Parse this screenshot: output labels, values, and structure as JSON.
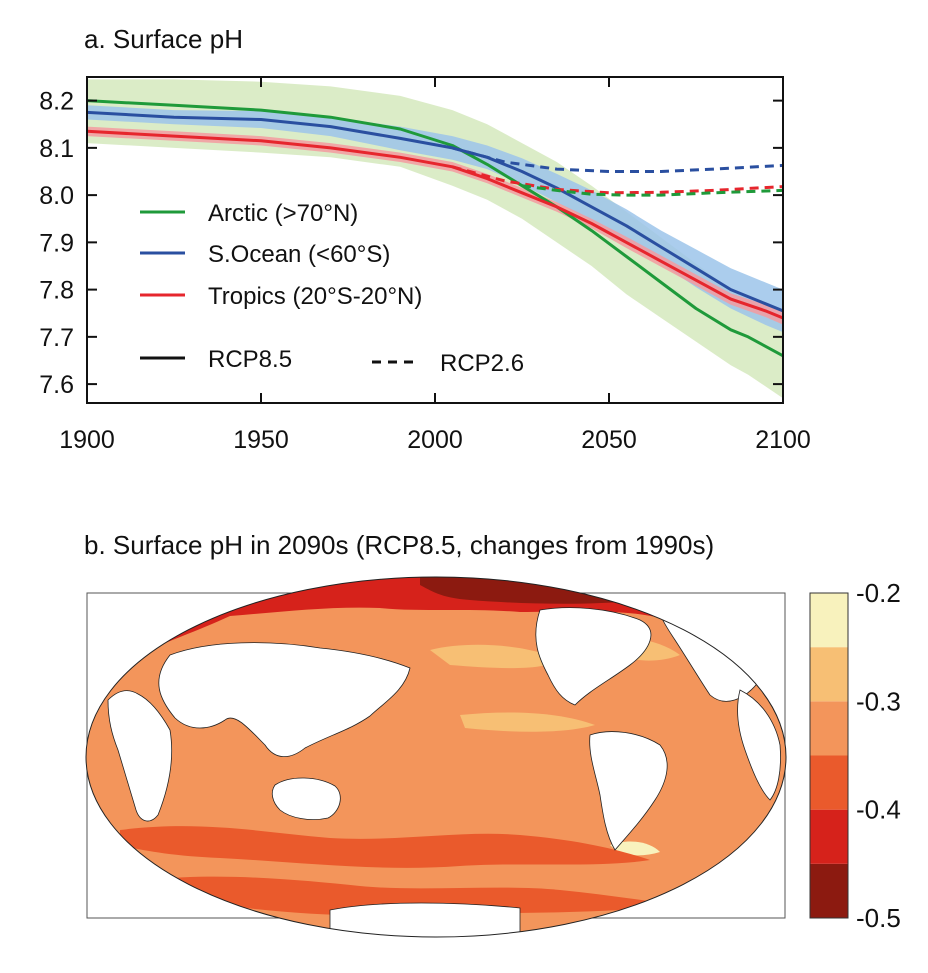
{
  "panel_a_title": "a. Surface pH",
  "panel_b_title": "b. Surface pH in 2090s (RCP8.5, changes from 1990s)",
  "colors": {
    "arctic": "#1f9a3a",
    "arctic_band": "#cfe6b4",
    "s_ocean": "#2a4fa0",
    "s_ocean_band": "#9cc4ea",
    "tropics": "#e6262d",
    "tropics_band": "#f39ba0"
  },
  "legend": {
    "arctic": "Arctic (>70°N)",
    "s_ocean": "S.Ocean (<60°S)",
    "tropics": "Tropics (20°S-20°N)",
    "rcp85": "RCP8.5",
    "rcp26": "RCP2.6"
  },
  "chart_data": [
    {
      "type": "line",
      "title": "a. Surface pH",
      "xlim": [
        1900,
        2100
      ],
      "ylim": [
        7.56,
        8.25
      ],
      "xticks": [
        1900,
        1950,
        2000,
        2050,
        2100
      ],
      "yticks": [
        7.6,
        7.7,
        7.8,
        7.9,
        8.0,
        8.1,
        8.2
      ],
      "xtick_labels": [
        "1900",
        "1950",
        "2000",
        "2050",
        "2100"
      ],
      "ytick_labels": [
        "7.6",
        "7.7",
        "7.8",
        "7.9",
        "8.0",
        "8.1",
        "8.2"
      ],
      "legend_position": "left",
      "series": [
        {
          "name": "Arctic (>70°N)",
          "scenario": "RCP8.5",
          "color": "#1f9a3a",
          "x": [
            1900,
            1925,
            1950,
            1970,
            1990,
            2005,
            2015,
            2025,
            2035,
            2045,
            2055,
            2065,
            2075,
            2085,
            2090,
            2100
          ],
          "y": [
            8.2,
            8.19,
            8.18,
            8.165,
            8.14,
            8.105,
            8.065,
            8.02,
            7.975,
            7.925,
            7.87,
            7.815,
            7.76,
            7.715,
            7.7,
            7.66
          ],
          "band_upper": [
            8.245,
            8.245,
            8.24,
            8.23,
            8.21,
            8.18,
            8.15,
            8.11,
            8.07,
            8.02,
            7.965,
            7.91,
            7.855,
            7.8,
            7.78,
            7.74
          ],
          "band_lower": [
            8.11,
            8.1,
            8.09,
            8.08,
            8.06,
            8.02,
            7.99,
            7.95,
            7.9,
            7.85,
            7.79,
            7.74,
            7.69,
            7.64,
            7.62,
            7.57
          ]
        },
        {
          "name": "S.Ocean (<60°S)",
          "scenario": "RCP8.5",
          "color": "#2a4fa0",
          "x": [
            1900,
            1925,
            1950,
            1970,
            1990,
            2005,
            2015,
            2025,
            2035,
            2045,
            2055,
            2065,
            2075,
            2085,
            2095,
            2100
          ],
          "y": [
            8.175,
            8.165,
            8.16,
            8.145,
            8.12,
            8.1,
            8.08,
            8.05,
            8.015,
            7.975,
            7.935,
            7.89,
            7.845,
            7.8,
            7.77,
            7.755
          ],
          "band_upper": [
            8.19,
            8.18,
            8.178,
            8.165,
            8.145,
            8.125,
            8.105,
            8.078,
            8.045,
            8.01,
            7.97,
            7.925,
            7.885,
            7.845,
            7.815,
            7.8
          ],
          "band_lower": [
            8.16,
            8.15,
            8.142,
            8.125,
            8.095,
            8.075,
            8.055,
            8.022,
            7.985,
            7.945,
            7.9,
            7.855,
            7.805,
            7.76,
            7.725,
            7.71
          ]
        },
        {
          "name": "Tropics (20°S-20°N)",
          "scenario": "RCP8.5",
          "color": "#e6262d",
          "x": [
            1900,
            1925,
            1950,
            1970,
            1990,
            2005,
            2015,
            2025,
            2035,
            2045,
            2055,
            2065,
            2075,
            2085,
            2095,
            2100
          ],
          "y": [
            8.135,
            8.125,
            8.115,
            8.1,
            8.08,
            8.06,
            8.035,
            8.005,
            7.975,
            7.94,
            7.9,
            7.86,
            7.82,
            7.78,
            7.755,
            7.74
          ],
          "band_upper": [
            8.145,
            8.135,
            8.125,
            8.11,
            8.09,
            8.07,
            8.045,
            8.015,
            7.985,
            7.95,
            7.912,
            7.872,
            7.832,
            7.792,
            7.768,
            7.754
          ],
          "band_lower": [
            8.125,
            8.115,
            8.105,
            8.09,
            8.07,
            8.05,
            8.025,
            7.995,
            7.965,
            7.93,
            7.888,
            7.848,
            7.808,
            7.768,
            7.742,
            7.726
          ]
        },
        {
          "name": "S.Ocean (<60°S)",
          "scenario": "RCP2.6",
          "color": "#2a4fa0",
          "x": [
            2005,
            2020,
            2035,
            2050,
            2065,
            2080,
            2100
          ],
          "y": [
            8.1,
            8.07,
            8.055,
            8.05,
            8.05,
            8.055,
            8.063
          ]
        },
        {
          "name": "Tropics (20°S-20°N)",
          "scenario": "RCP2.6",
          "color": "#e6262d",
          "x": [
            2005,
            2020,
            2035,
            2050,
            2065,
            2080,
            2100
          ],
          "y": [
            8.06,
            8.03,
            8.012,
            8.005,
            8.006,
            8.01,
            8.018
          ]
        },
        {
          "name": "Arctic (>70°N)",
          "scenario": "RCP2.6",
          "color": "#1f9a3a",
          "x": [
            2025,
            2035,
            2045,
            2055,
            2065,
            2080,
            2100
          ],
          "y": [
            8.02,
            8.01,
            8.002,
            8.0,
            8.0,
            8.005,
            8.01
          ]
        }
      ]
    },
    {
      "type": "heatmap",
      "title": "b. Surface pH in 2090s (RCP8.5, changes from 1990s)",
      "colorbar": {
        "levels": [
          -0.5,
          -0.45,
          -0.4,
          -0.35,
          -0.3,
          -0.25,
          -0.2
        ],
        "colors": [
          "#8c1a10",
          "#d6221b",
          "#ea5a2c",
          "#f3955b",
          "#f7bf74",
          "#f8f2bd"
        ],
        "tick_values": [
          -0.2,
          -0.3,
          -0.4,
          -0.5
        ],
        "tick_labels": [
          "-0.2",
          "-0.3",
          "-0.4",
          "-0.5"
        ]
      }
    }
  ]
}
